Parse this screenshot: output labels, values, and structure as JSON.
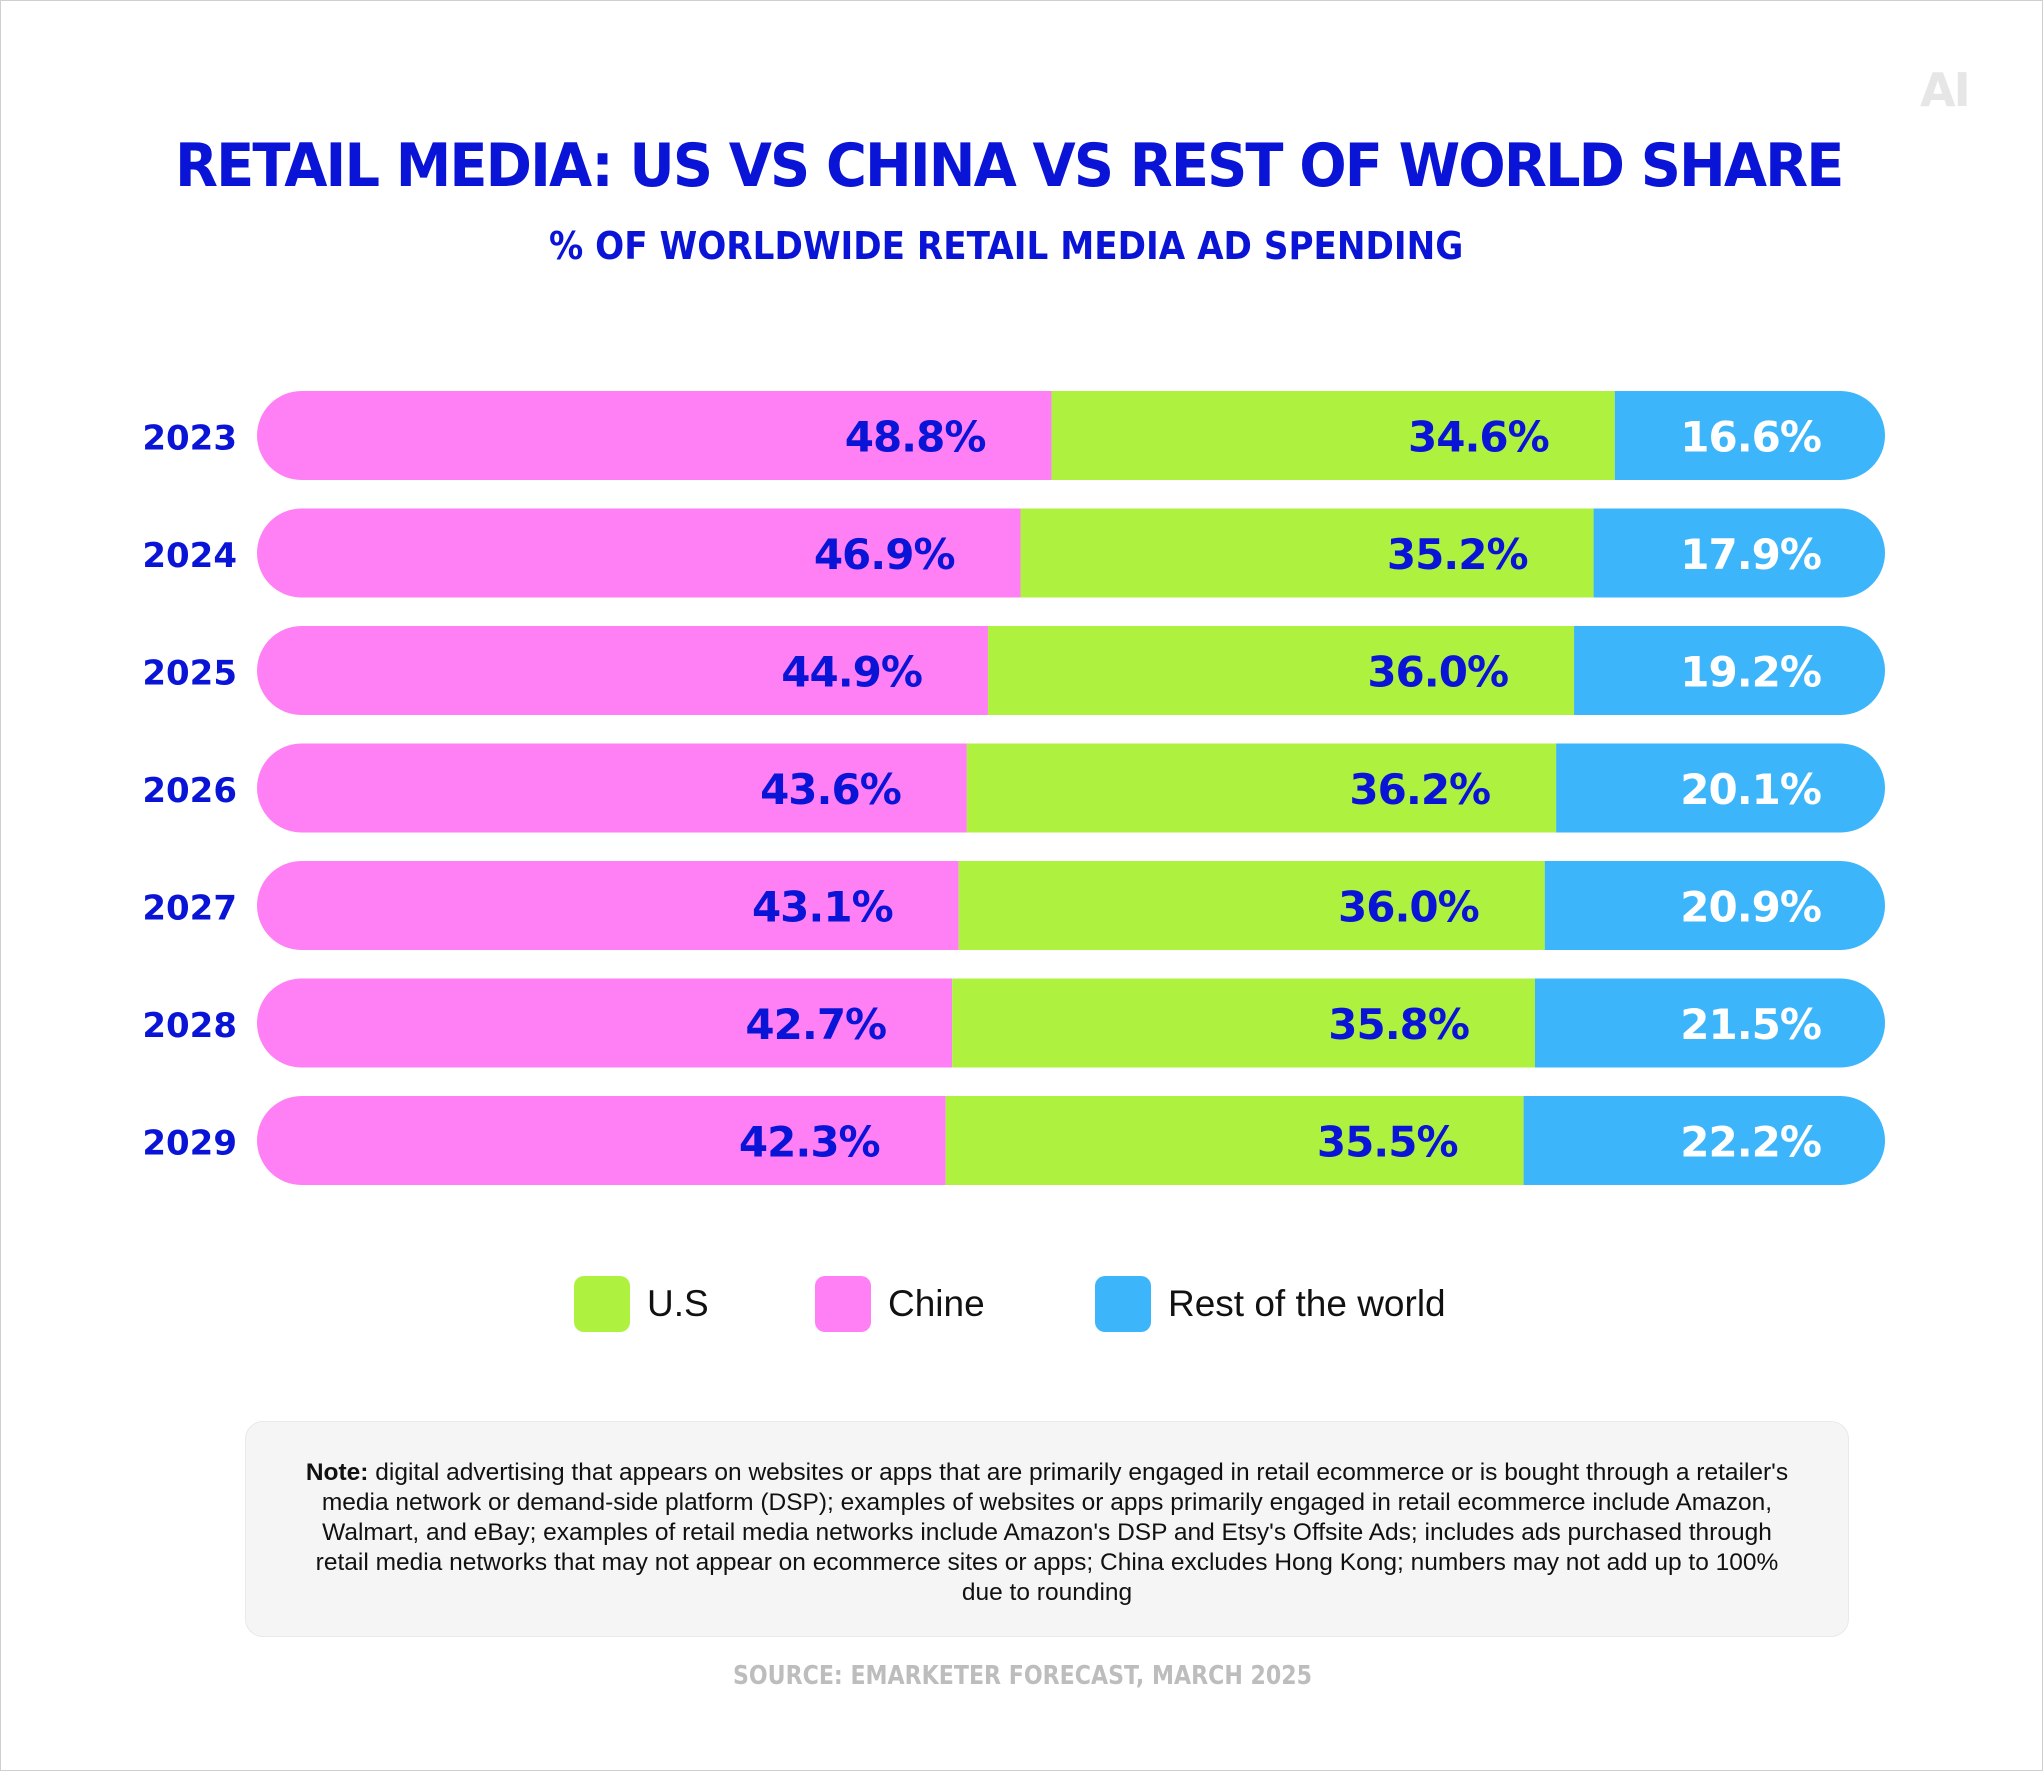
{
  "logo": {
    "text": "AI"
  },
  "chart_data": {
    "type": "bar",
    "orientation": "horizontal",
    "stacked": true,
    "title": "RETAIL MEDIA: US VS CHINA VS REST OF WORLD SHARE",
    "subtitle": "% OF WORLDWIDE RETAIL MEDIA AD SPENDING",
    "categories": [
      "2023",
      "2024",
      "2025",
      "2026",
      "2027",
      "2028",
      "2029"
    ],
    "series": [
      {
        "name": "Chine",
        "key": "china",
        "color": "#ff80f5",
        "label_color": "#0a14d6",
        "values": [
          48.8,
          46.9,
          44.9,
          43.6,
          43.1,
          42.7,
          42.3
        ],
        "labels": [
          "48.8%",
          "46.9%",
          "44.9%",
          "43.6%",
          "43.1%",
          "42.7%",
          "42.3%"
        ]
      },
      {
        "name": "U.S",
        "key": "us",
        "color": "#aef23f",
        "label_color": "#0a14d6",
        "values": [
          34.6,
          35.2,
          36.0,
          36.2,
          36.0,
          35.8,
          35.5
        ],
        "labels": [
          "34.6%",
          "35.2%",
          "36.0%",
          "36.2%",
          "36.0%",
          "35.8%",
          "35.5%"
        ]
      },
      {
        "name": "Rest of the world",
        "key": "rest",
        "color": "#3db5fb",
        "label_color": "#ffffff",
        "values": [
          16.6,
          17.9,
          19.2,
          20.1,
          20.9,
          21.5,
          22.2
        ],
        "labels": [
          "16.6%",
          "17.9%",
          "19.2%",
          "20.1%",
          "20.9%",
          "21.5%",
          "22.2%"
        ]
      }
    ],
    "xlim": [
      0,
      100
    ],
    "grid": false,
    "legend": {
      "position": "bottom",
      "items": [
        {
          "name": "U.S",
          "color": "#aef23f"
        },
        {
          "name": "Chine",
          "color": "#ff80f5"
        },
        {
          "name": "Rest of the world",
          "color": "#3db5fb"
        }
      ]
    }
  },
  "note": {
    "label": "Note:",
    "text": "digital advertising that appears on websites or apps that are primarily engaged in retail ecommerce or is bought through a retailer's media network or demand-side platform (DSP); examples of websites or apps primarily engaged in retail ecommerce include Amazon, Walmart, and eBay; examples of retail media networks include Amazon's DSP and Etsy's Offsite Ads; includes ads purchased through retail media networks that may not appear on ecommerce sites or apps; China excludes Hong Kong; numbers may not add up to 100% due to rounding"
  },
  "source": "SOURCE: EMARKETER FORECAST, MARCH 2025"
}
